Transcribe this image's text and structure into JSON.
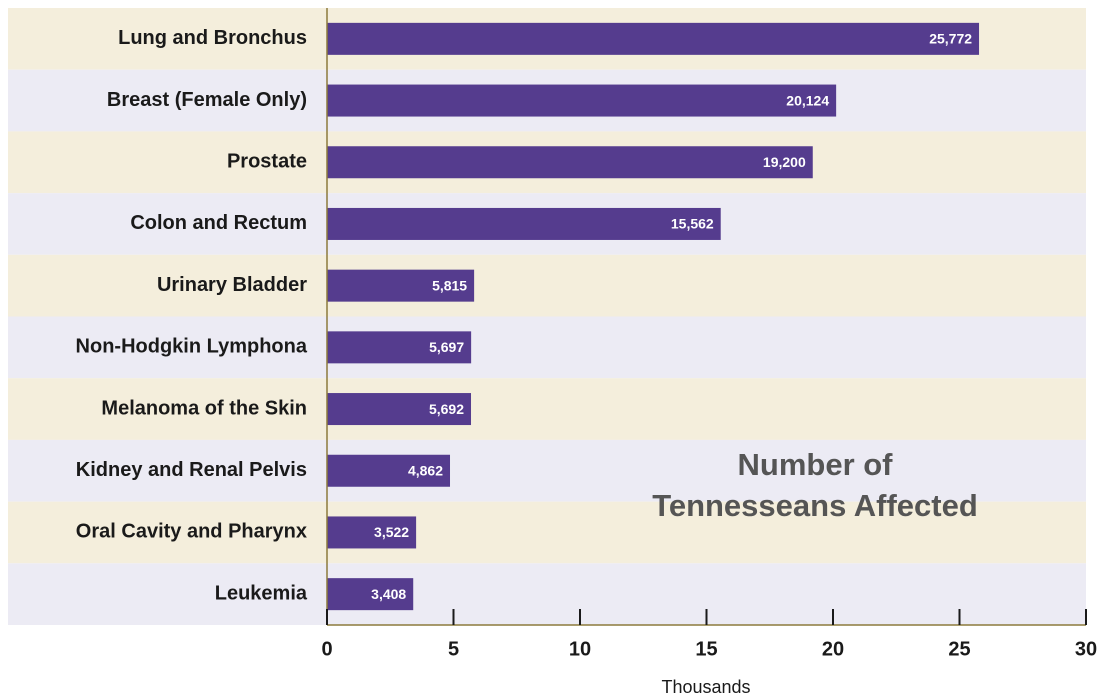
{
  "chart_data": {
    "type": "hbar",
    "categories": [
      "Lung and Bronchus",
      "Breast (Female Only)",
      "Prostate",
      "Colon and Rectum",
      "Urinary Bladder",
      "Non-Hodgkin Lymphona",
      "Melanoma of the Skin",
      "Kidney and Renal Pelvis",
      "Oral Cavity and Pharynx",
      "Leukemia"
    ],
    "values": [
      25.772,
      20.124,
      19.2,
      15.562,
      5.815,
      5.697,
      5.692,
      4.862,
      3.522,
      3.408
    ],
    "value_labels": [
      "25,772",
      "20,124",
      "19,200",
      "15,562",
      "5,815",
      "5,697",
      "5,692",
      "4,862",
      "3,522",
      "3,408"
    ],
    "color": "#553c8e",
    "xlim": [
      0,
      30
    ],
    "xticks": [
      0,
      5,
      10,
      15,
      20,
      25,
      30
    ],
    "x_label": "Thousands",
    "annotation": [
      "Number of",
      "Tennesseans Affected"
    ]
  }
}
